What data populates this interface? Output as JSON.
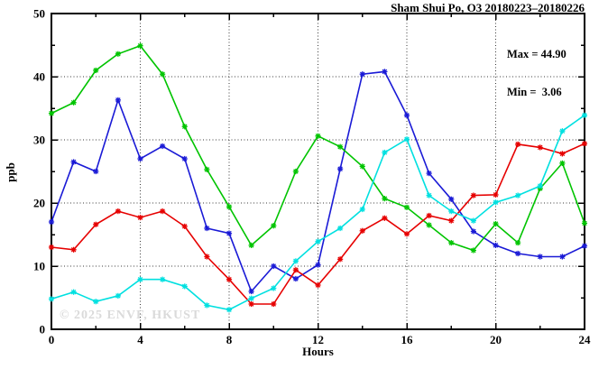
{
  "title": "Sham Shui Po, O3 20180223–20180226",
  "annotations": {
    "max_label": "Max = 44.90",
    "min_label": "Min =  3.06"
  },
  "watermark": "© 2025 ENVF, HKUST",
  "chart_data": {
    "type": "line",
    "title": "Sham Shui Po, O3 20180223–20180226",
    "xlabel": "Hours",
    "ylabel": "ppb",
    "xlim": [
      0,
      24
    ],
    "ylim": [
      0,
      50
    ],
    "x_major_ticks": [
      0,
      4,
      8,
      12,
      16,
      20,
      24
    ],
    "x_minor_step": 2,
    "y_major_ticks": [
      0,
      10,
      20,
      30,
      40,
      50
    ],
    "y_minor_step": 5,
    "grid": "dotted lines at major ticks, box frame with inward ticks on all sides",
    "legend": "none",
    "max_value": 44.9,
    "min_value": 3.06,
    "x": [
      0,
      1,
      2,
      3,
      4,
      5,
      6,
      7,
      8,
      9,
      10,
      11,
      12,
      13,
      14,
      15,
      16,
      17,
      18,
      19,
      20,
      21,
      22,
      23,
      24
    ],
    "series": [
      {
        "name": "series-blue",
        "color": "#1a1ad6",
        "values": [
          17.0,
          26.5,
          25.0,
          36.3,
          27.0,
          29.0,
          27.0,
          16.0,
          15.2,
          6.0,
          10.0,
          8.0,
          10.2,
          25.4,
          40.4,
          40.8,
          33.9,
          24.7,
          20.6,
          15.5,
          13.3,
          12.0,
          11.5,
          11.5,
          13.2
        ]
      },
      {
        "name": "series-green",
        "color": "#00c400",
        "values": [
          34.2,
          35.9,
          41.0,
          43.6,
          44.9,
          40.4,
          32.1,
          25.3,
          19.4,
          13.3,
          16.4,
          25.0,
          30.6,
          28.9,
          25.8,
          20.7,
          19.3,
          16.5,
          13.7,
          12.5,
          16.7,
          13.7,
          22.3,
          26.3,
          16.8
        ]
      },
      {
        "name": "series-red",
        "color": "#e60000",
        "values": [
          13.0,
          12.6,
          16.6,
          18.7,
          17.7,
          18.7,
          16.3,
          11.5,
          7.9,
          4.0,
          4.0,
          9.4,
          7.0,
          11.1,
          15.6,
          17.6,
          15.1,
          18.0,
          17.2,
          21.2,
          21.3,
          29.3,
          28.8,
          27.8,
          29.4
        ]
      },
      {
        "name": "series-cyan",
        "color": "#00e0e0",
        "values": [
          4.8,
          5.9,
          4.4,
          5.3,
          7.9,
          7.9,
          6.8,
          3.8,
          3.1,
          4.9,
          6.5,
          10.8,
          13.9,
          16.0,
          19.0,
          28.0,
          30.1,
          21.2,
          18.7,
          17.2,
          20.1,
          21.2,
          22.7,
          31.4,
          33.9
        ]
      }
    ]
  }
}
